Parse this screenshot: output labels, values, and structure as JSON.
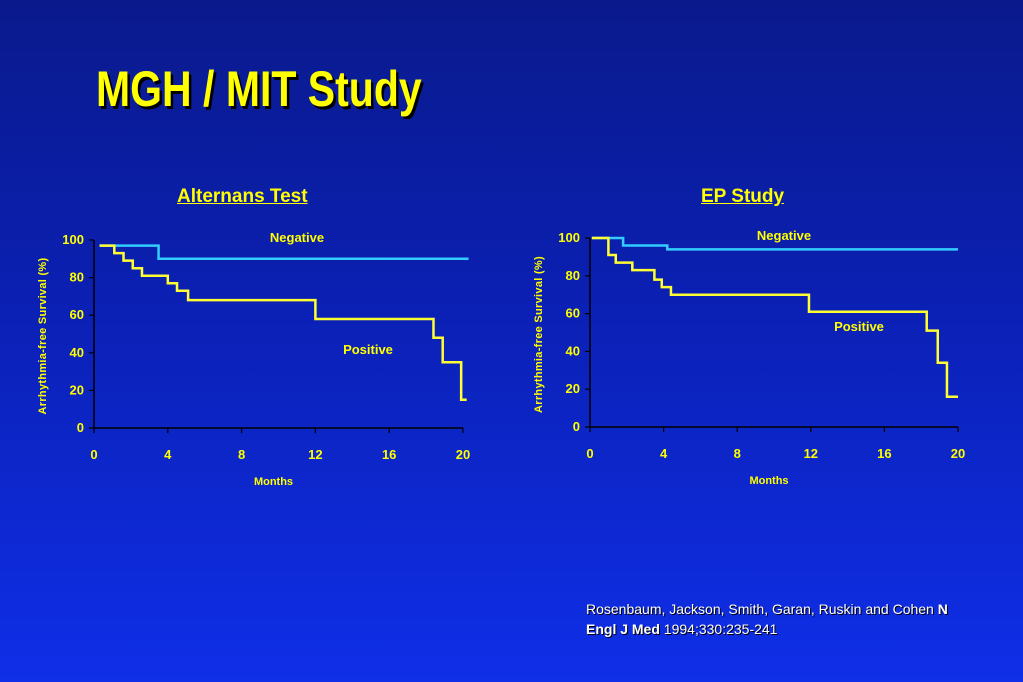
{
  "title": "MGH / MIT Study",
  "citation": {
    "authors": "Rosenbaum, Jackson, Smith, Garan, Ruskin and Cohen",
    "journal": "N Engl J Med",
    "ref": "1994;330:235-241"
  },
  "colors": {
    "background": "#0b20b4",
    "text": "#ffff00",
    "positive_line": "#ffff33",
    "negative_line": "#33ccff"
  },
  "chart_data": [
    {
      "type": "line",
      "title": "Alternans Test",
      "xlabel": "Months",
      "ylabel": "Arrhythmia-free Survival (%)",
      "xlim": [
        0,
        20
      ],
      "ylim": [
        0,
        100
      ],
      "xticks": [
        "0",
        "4",
        "8",
        "12",
        "16",
        "20"
      ],
      "yticks": [
        "0",
        "20",
        "40",
        "60",
        "80",
        "100"
      ],
      "series": [
        {
          "name": "Negative",
          "step": true,
          "x": [
            0.3,
            3.5,
            20.3
          ],
          "y": [
            97,
            90,
            90
          ]
        },
        {
          "name": "Positive",
          "step": true,
          "x": [
            0.3,
            1.1,
            1.6,
            2.1,
            2.6,
            4.0,
            4.5,
            5.1,
            12.0,
            18.4,
            18.9,
            19.9,
            20.2
          ],
          "y": [
            97,
            93,
            89,
            85,
            81,
            77,
            73,
            68,
            58,
            48,
            35,
            15,
            15
          ]
        }
      ]
    },
    {
      "type": "line",
      "title": "EP Study",
      "xlabel": "Months",
      "ylabel": "Arrhythmia-free Survival (%)",
      "xlim": [
        0,
        20
      ],
      "ylim": [
        0,
        100
      ],
      "xticks": [
        "0",
        "4",
        "8",
        "12",
        "16",
        "20"
      ],
      "yticks": [
        "0",
        "20",
        "40",
        "60",
        "80",
        "100"
      ],
      "series": [
        {
          "name": "Negative",
          "step": true,
          "x": [
            0.1,
            1.8,
            4.2,
            20.0
          ],
          "y": [
            100,
            96,
            94,
            94
          ]
        },
        {
          "name": "Positive",
          "step": true,
          "x": [
            0.1,
            1.0,
            1.4,
            2.3,
            3.5,
            3.9,
            4.4,
            11.9,
            18.3,
            18.9,
            19.4,
            20.0
          ],
          "y": [
            100,
            91,
            87,
            83,
            78,
            74,
            70,
            61,
            51,
            34,
            16,
            16
          ]
        }
      ]
    }
  ]
}
